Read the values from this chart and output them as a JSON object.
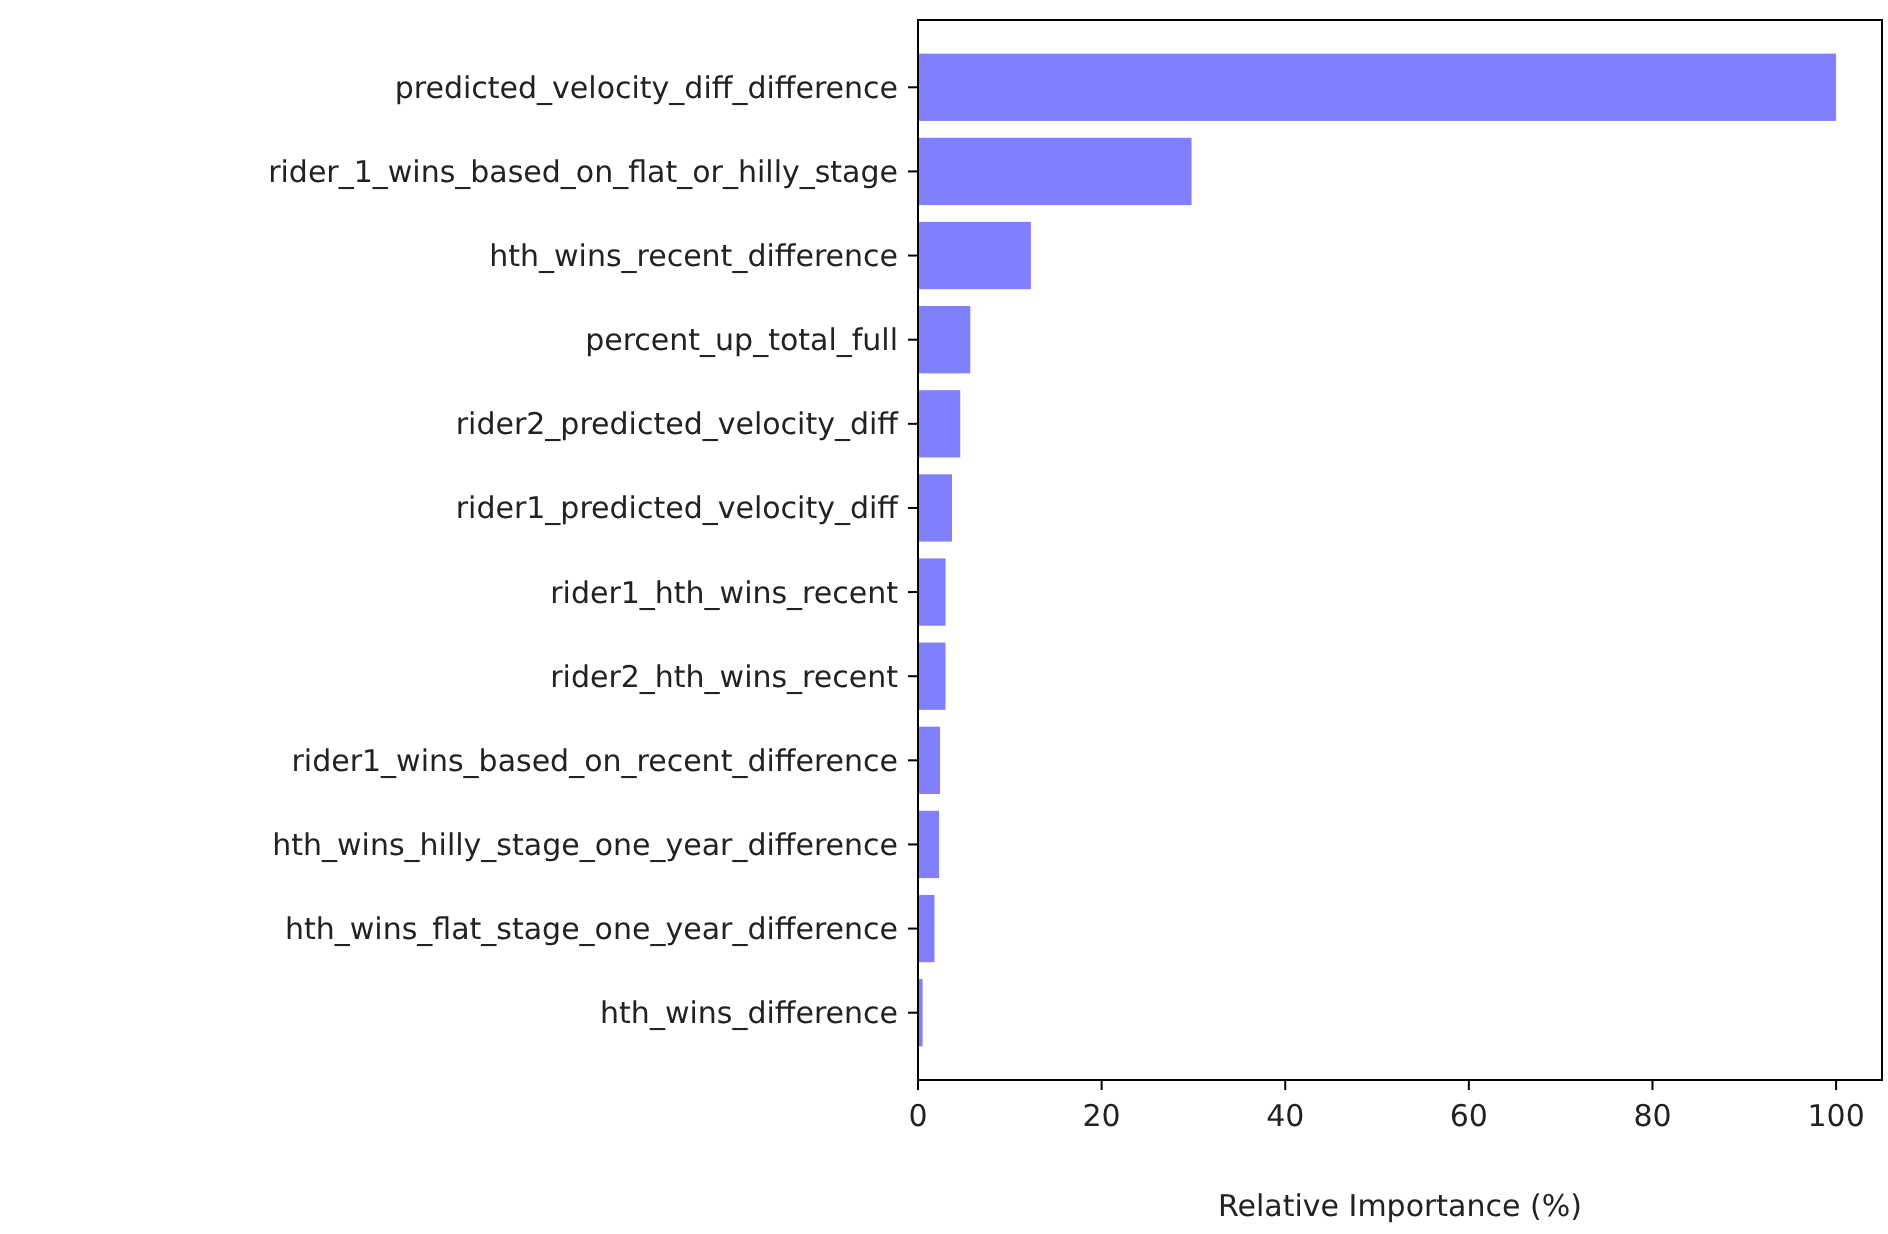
{
  "chart_data": {
    "type": "bar",
    "orientation": "horizontal",
    "xlabel": "Relative Importance (%)",
    "categories": [
      "predicted_velocity_diff_difference",
      "rider_1_wins_based_on_flat_or_hilly_stage",
      "hth_wins_recent_difference",
      "percent_up_total_full",
      "rider2_predicted_velocity_diff",
      "rider1_predicted_velocity_diff",
      "rider1_hth_wins_recent",
      "rider2_hth_wins_recent",
      "rider1_wins_based_on_recent_difference",
      "hth_wins_hilly_stage_one_year_difference",
      "hth_wins_flat_stage_one_year_difference",
      "hth_wins_difference"
    ],
    "values": [
      100,
      29.8,
      12.3,
      5.7,
      4.6,
      3.7,
      3.0,
      3.0,
      2.4,
      2.3,
      1.8,
      0.5
    ],
    "color": "#8080ff",
    "xlim": [
      0,
      105
    ],
    "xticks": [
      0,
      20,
      40,
      60,
      80,
      100
    ]
  }
}
